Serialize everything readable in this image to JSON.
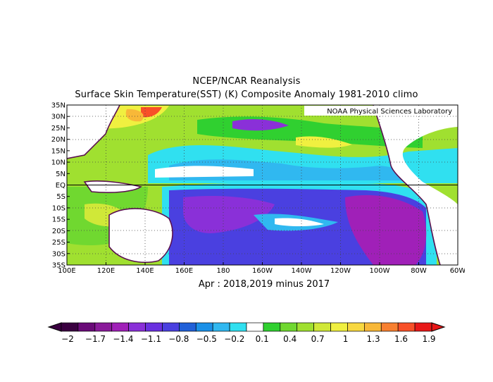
{
  "title_line1": "NCEP/NCAR Reanalysis",
  "title_line2": "Surface Skin Temperature(SST) (K) Composite Anomaly 1981-2010 climo",
  "subtitle": "Apr : 2018,2019 minus 2017",
  "credit": "NOAA Physical Sciences Laboratory",
  "map": {
    "lat_labels": [
      "35N",
      "30N",
      "25N",
      "20N",
      "15N",
      "10N",
      "5N",
      "EQ",
      "5S",
      "10S",
      "15S",
      "20S",
      "25S",
      "30S",
      "35S"
    ],
    "lon_labels": [
      "100E",
      "120E",
      "140E",
      "160E",
      "180",
      "160W",
      "140W",
      "120W",
      "100W",
      "80W",
      "60W"
    ],
    "lat_range": [
      -35,
      35
    ],
    "lon_range": [
      100,
      300
    ],
    "equator_line": true,
    "gridlines": "dotted"
  },
  "colorbar": {
    "labels": [
      "-2",
      "-1.7",
      "-1.4",
      "-1.1",
      "-0.8",
      "-0.5",
      "-0.2",
      "0.1",
      "0.4",
      "0.7",
      "1",
      "1.3",
      "1.6",
      "1.9"
    ],
    "colors": [
      "#3a0040",
      "#6a0a78",
      "#8a1a9a",
      "#a020b8",
      "#8a30d8",
      "#6a30e0",
      "#4a40e0",
      "#2060d8",
      "#1a90e8",
      "#30b8f0",
      "#30e0f0",
      "#ffffff",
      "#30d030",
      "#70d830",
      "#a0e030",
      "#d0e838",
      "#f0f040",
      "#f8d840",
      "#f8b838",
      "#f88030",
      "#f85028",
      "#e81818"
    ]
  }
}
